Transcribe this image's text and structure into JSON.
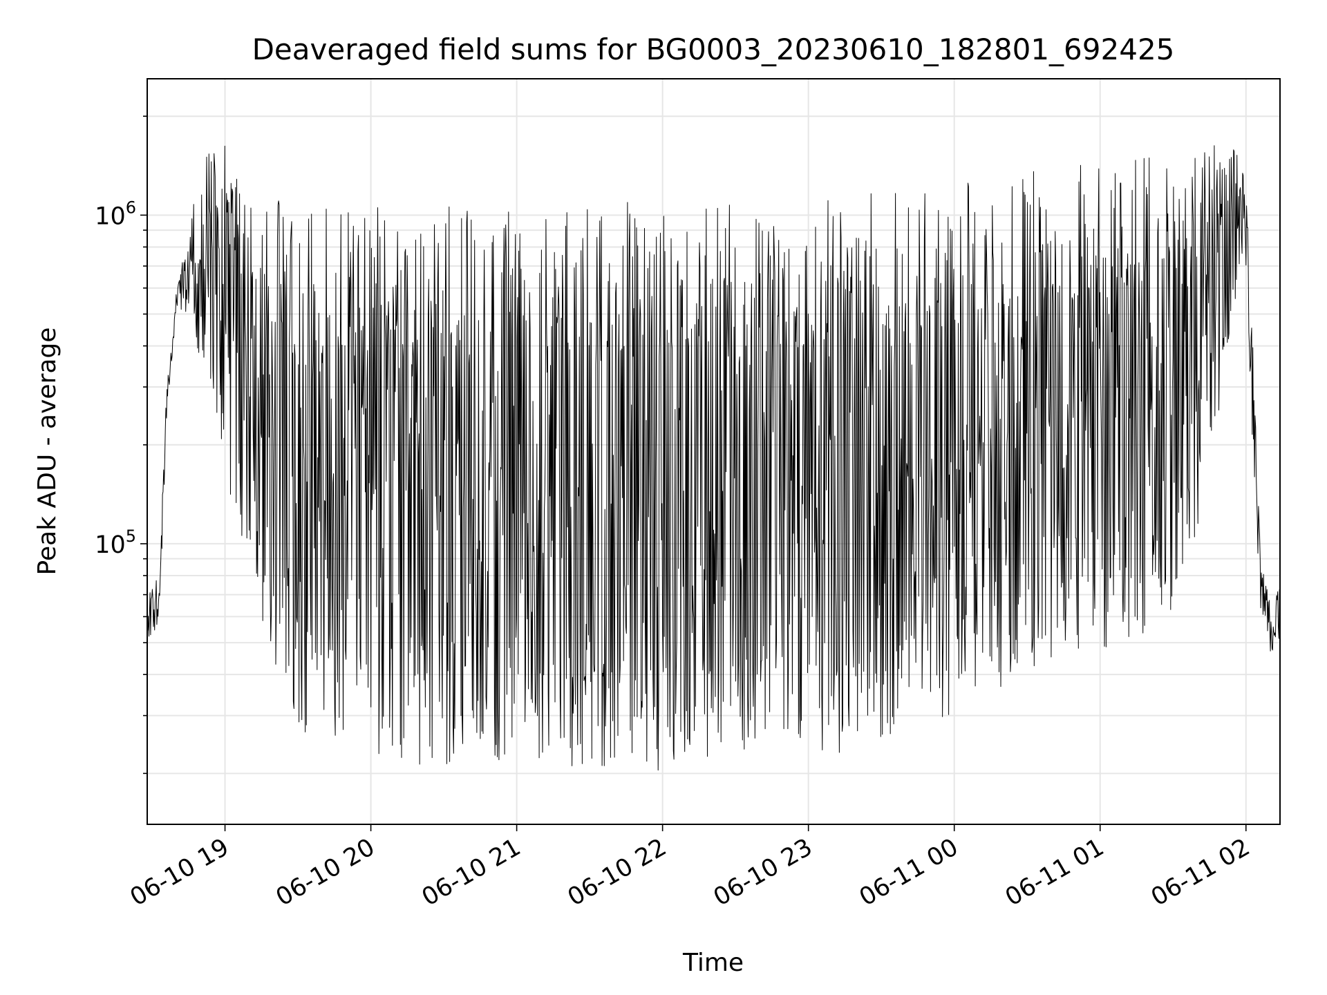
{
  "chart_data": {
    "type": "line",
    "title": "Deaveraged field sums for BG0003_20230610_182801_692425",
    "xlabel": "Time",
    "ylabel": "Peak ADU - average",
    "yscale": "log",
    "grid": true,
    "line_color": "#000000",
    "grid_color": "#e6e6e6",
    "x_ticks": [
      "06-10 19",
      "06-10 20",
      "06-10 21",
      "06-10 22",
      "06-10 23",
      "06-11 00",
      "06-11 01",
      "06-11 02"
    ],
    "y_ticks": [
      {
        "base": "10",
        "exp": "5",
        "value": 100000
      },
      {
        "base": "10",
        "exp": "6",
        "value": 1000000
      }
    ],
    "xlim": [
      "2023-06-10 18:28",
      "2023-06-11 02:14"
    ],
    "ylim": [
      14000,
      2600000
    ],
    "series": [
      {
        "x": [
          "2023-06-10 18:28",
          "2023-06-10 18:33",
          "2023-06-10 18:36",
          "2023-06-10 18:40",
          "2023-06-10 18:45",
          "2023-06-10 18:50",
          "2023-06-10 18:55",
          "2023-06-10 19:00",
          "2023-06-10 19:05",
          "2023-06-10 19:10",
          "2023-06-10 19:15",
          "2023-06-10 19:20",
          "2023-06-10 19:25",
          "2023-06-10 19:30",
          "2023-06-10 19:40",
          "2023-06-10 19:50",
          "2023-06-10 20:00",
          "2023-06-10 20:15",
          "2023-06-10 20:30",
          "2023-06-10 20:45",
          "2023-06-10 21:00",
          "2023-06-10 21:15",
          "2023-06-10 21:30",
          "2023-06-10 21:45",
          "2023-06-10 22:00",
          "2023-06-10 22:15",
          "2023-06-10 22:30",
          "2023-06-10 22:45",
          "2023-06-10 23:00",
          "2023-06-10 23:15",
          "2023-06-10 23:30",
          "2023-06-10 23:45",
          "2023-06-11 00:00",
          "2023-06-11 00:15",
          "2023-06-11 00:30",
          "2023-06-11 00:45",
          "2023-06-11 01:00",
          "2023-06-11 01:15",
          "2023-06-11 01:30",
          "2023-06-11 01:45",
          "2023-06-11 01:55",
          "2023-06-11 02:00",
          "2023-06-11 02:03",
          "2023-06-11 02:06",
          "2023-06-11 02:10",
          "2023-06-11 02:14"
        ],
        "upper": [
          70000,
          80000,
          300000,
          600000,
          900000,
          1500000,
          1800000,
          1700000,
          1500000,
          1300000,
          1200000,
          1150000,
          1100000,
          1100000,
          1100000,
          1100000,
          1100000,
          1100000,
          1100000,
          1050000,
          1100000,
          1100000,
          1100000,
          1100000,
          1150000,
          1150000,
          1100000,
          1100000,
          1100000,
          1150000,
          1200000,
          1200000,
          1250000,
          1300000,
          1400000,
          1500000,
          1550000,
          1600000,
          1650000,
          1650000,
          1600000,
          1400000,
          400000,
          90000,
          65000,
          80000
        ],
        "lower": [
          50000,
          55000,
          250000,
          500000,
          500000,
          350000,
          250000,
          150000,
          100000,
          80000,
          60000,
          40000,
          30000,
          25000,
          25000,
          25000,
          22000,
          22000,
          20000,
          22000,
          20000,
          22000,
          20000,
          22000,
          20000,
          22000,
          22000,
          25000,
          22000,
          22000,
          25000,
          28000,
          30000,
          35000,
          40000,
          45000,
          45000,
          50000,
          60000,
          150000,
          500000,
          700000,
          150000,
          60000,
          45000,
          50000
        ],
        "seed": 42
      }
    ]
  }
}
